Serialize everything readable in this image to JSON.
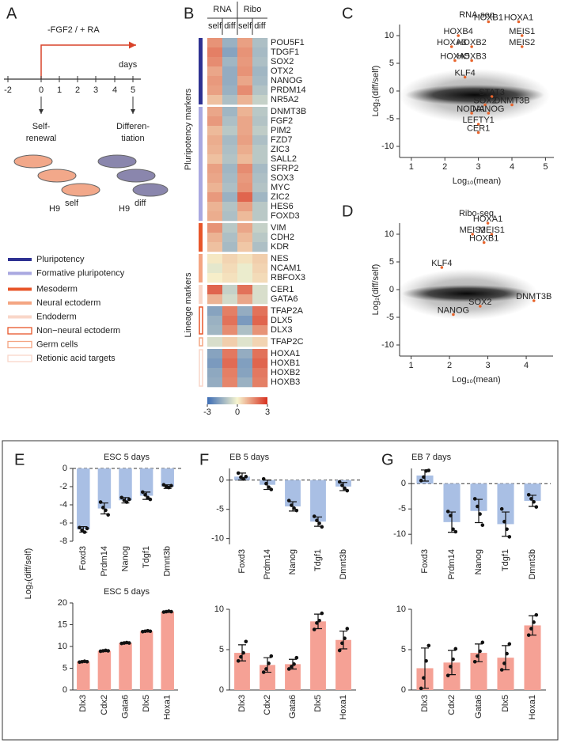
{
  "panel_labels": [
    "A",
    "B",
    "C",
    "D",
    "E",
    "F",
    "G"
  ],
  "schematic": {
    "treatment": "-FGF2 / + RA",
    "axis_unit": "days",
    "timeline": [
      "-2",
      "0",
      "1",
      "2",
      "3",
      "4",
      "5"
    ],
    "left_state": [
      "Self-",
      "renewal"
    ],
    "right_state": [
      "Differen-",
      "tiation"
    ],
    "cell_line": "H9",
    "left_tag": "self",
    "right_tag": "diff"
  },
  "chart_data": [
    {
      "type": "heatmap",
      "column_groups": [
        "RNA",
        "Ribo"
      ],
      "columns": [
        "self",
        "diff",
        "self",
        "diff"
      ],
      "clim": [
        -3,
        3
      ],
      "cticks": [
        -3,
        0,
        3
      ],
      "colormap": [
        "#3d6db5",
        "#f7f5cf",
        "#d7301f"
      ],
      "sections": [
        {
          "label": "Pluripotency markers",
          "color": "#3b3b9a",
          "groups": [
            {
              "name": "Pluripotency",
              "color": "#2e3192",
              "style": "solid",
              "rows": [
                "POU5F1",
                "TDGF1",
                "SOX2",
                "OTX2",
                "NANOG",
                "PRDM14",
                "NR5A2"
              ],
              "values": [
                [
                  1.5,
                  -1.5,
                  1.3,
                  -1.2
                ],
                [
                  1.8,
                  -1.8,
                  1.5,
                  -1.3
                ],
                [
                  1.6,
                  -1.4,
                  1.4,
                  -1.2
                ],
                [
                  1.2,
                  -1.6,
                  1.5,
                  -1.4
                ],
                [
                  1.4,
                  -1.6,
                  1.2,
                  -1.3
                ],
                [
                  1.3,
                  -1.5,
                  1.6,
                  -1.1
                ],
                [
                  0.8,
                  -1.2,
                  1.0,
                  -0.8
                ]
              ]
            },
            {
              "name": "Formative pluripotency",
              "color": "#a9a8e0",
              "style": "solid",
              "rows": [
                "DNMT3B",
                "FGF2",
                "PIM2",
                "FZD7",
                "ZIC3",
                "SALL2",
                "SFRP2",
                "SOX3",
                "MYC",
                "ZIC2",
                "HES6",
                "FOXD3"
              ],
              "values": [
                [
                  1.2,
                  -1.4,
                  1.0,
                  -1.0
                ],
                [
                  1.4,
                  -1.2,
                  1.2,
                  -1.1
                ],
                [
                  0.9,
                  -1.0,
                  1.2,
                  -0.9
                ],
                [
                  1.1,
                  -1.3,
                  1.3,
                  -1.2
                ],
                [
                  1.0,
                  -1.2,
                  1.1,
                  -1.0
                ],
                [
                  0.8,
                  -1.1,
                  0.9,
                  -1.0
                ],
                [
                  1.3,
                  -1.4,
                  1.6,
                  -1.3
                ],
                [
                  1.2,
                  -1.3,
                  1.4,
                  -1.2
                ],
                [
                  1.0,
                  -1.2,
                  1.5,
                  -1.1
                ],
                [
                  1.4,
                  -1.5,
                  2.2,
                  -1.4
                ],
                [
                  1.0,
                  -1.1,
                  1.3,
                  -1.0
                ],
                [
                  1.1,
                  -1.2,
                  0.9,
                  -1.0
                ]
              ]
            }
          ]
        },
        {
          "label": "Lineage markers",
          "color": "#e8562a",
          "groups": [
            {
              "name": "Mesoderm",
              "color": "#e8562a",
              "style": "solid",
              "rows": [
                "VIM",
                "CDH2",
                "KDR"
              ],
              "values": [
                [
                  1.5,
                  -1.0,
                  1.2,
                  -0.8
                ],
                [
                  1.0,
                  -1.2,
                  0.9,
                  -1.0
                ],
                [
                  0.8,
                  -1.3,
                  0.7,
                  -1.2
                ]
              ]
            },
            {
              "name": "Neural ectoderm",
              "color": "#f4a582",
              "style": "solid",
              "rows": [
                "NES",
                "NCAM1",
                "RBFOX3"
              ],
              "values": [
                [
                  0.2,
                  0.5,
                  0.3,
                  0.6
                ],
                [
                  -0.3,
                  0.4,
                  -0.2,
                  0.5
                ],
                [
                  0.1,
                  0.3,
                  -0.2,
                  0.4
                ]
              ]
            },
            {
              "name": "Endoderm",
              "color": "#f9d6c8",
              "style": "solid",
              "rows": [
                "CER1",
                "GATA6"
              ],
              "values": [
                [
                  2.2,
                  -0.8,
                  2.0,
                  -0.5
                ],
                [
                  1.0,
                  -0.6,
                  1.2,
                  -0.5
                ]
              ]
            },
            {
              "name": "Non−neural ectoderm",
              "color": "#e8562a",
              "style": "outline",
              "rows": [
                "TFAP2A",
                "DLX5",
                "DLX3"
              ],
              "values": [
                [
                  -1.8,
                  1.8,
                  -1.6,
                  2.0
                ],
                [
                  -1.5,
                  2.0,
                  -2.0,
                  2.2
                ],
                [
                  -1.4,
                  1.6,
                  -1.2,
                  1.5
                ]
              ]
            },
            {
              "name": "Germ cells",
              "color": "#f4a582",
              "style": "outline",
              "rows": [
                "TFAP2C"
              ],
              "values": [
                [
                  -0.5,
                  0.6,
                  -0.4,
                  0.5
                ]
              ]
            },
            {
              "name": "Retionic acid targets",
              "color": "#f9d6c8",
              "style": "outline",
              "rows": [
                "HOXA1",
                "HOXB1",
                "HOXB2",
                "HOXB3"
              ],
              "values": [
                [
                  -1.8,
                  1.9,
                  -1.6,
                  2.0
                ],
                [
                  -2.0,
                  2.1,
                  -1.9,
                  2.2
                ],
                [
                  -1.7,
                  1.8,
                  -1.8,
                  1.9
                ],
                [
                  -1.6,
                  1.7,
                  -1.5,
                  1.8
                ]
              ]
            }
          ]
        }
      ]
    },
    {
      "type": "scatter",
      "title": "RNA-seq",
      "xlabel": "Log₁₀(mean)",
      "ylabel": "Log₂(diff/self)",
      "color": "#e8642c",
      "labels": [
        "HOXB1",
        "HOXA1",
        "MEIS1",
        "MEIS2",
        "HOXB4",
        "HOXA3",
        "HOXB2",
        "HOXA5",
        "HOXB3",
        "KLF4",
        "STAT3",
        "SOX2",
        "DNMT3B",
        "NODAL",
        "NANOG",
        "LEFTY1",
        "CER1"
      ],
      "x": [
        3.3,
        4.2,
        4.3,
        4.3,
        2.4,
        2.2,
        2.8,
        2.3,
        2.8,
        2.6,
        3.4,
        3.2,
        4.0,
        2.8,
        3.3,
        3.0,
        3.0
      ],
      "y": [
        12.5,
        12.5,
        10.0,
        8.0,
        10.0,
        8.0,
        8.0,
        5.5,
        5.5,
        2.5,
        -1.0,
        -2.5,
        -2.5,
        -4.0,
        -4.0,
        -6.0,
        -7.5
      ],
      "xlim": [
        0.65,
        5.25
      ],
      "ylim": [
        -12,
        12
      ],
      "xticks": [
        1,
        2,
        3,
        4,
        5
      ],
      "yticks": [
        -10,
        -5,
        0,
        5,
        10
      ]
    },
    {
      "type": "scatter",
      "title": "Ribo-seq",
      "xlabel": "Log₁₀(mean)",
      "ylabel": "Log₂(diff/self)",
      "color": "#e8642c",
      "labels": [
        "HOXA1",
        "MEIS2",
        "MEIS1",
        "HOXB1",
        "KLF4",
        "SOX2",
        "DNMT3B",
        "NANOG"
      ],
      "x": [
        3.0,
        2.6,
        3.1,
        2.9,
        1.8,
        2.8,
        4.2,
        2.1
      ],
      "y": [
        12.0,
        10.0,
        10.0,
        8.5,
        4.0,
        -3.0,
        -2.0,
        -4.5
      ],
      "xlim": [
        0.7,
        4.7
      ],
      "ylim": [
        -12,
        12
      ],
      "xticks": [
        1,
        2,
        3,
        4
      ],
      "yticks": [
        -10,
        -5,
        0,
        5,
        10
      ]
    },
    {
      "type": "bar",
      "title": "ESC 5 days",
      "ylabel": "Log₂(diff/self)",
      "color": "#a9bfe4",
      "zero_line": true,
      "categories": [
        "Foxd3",
        "Prdm14",
        "Nanog",
        "Tdgf1",
        "Dmnt3b"
      ],
      "values": [
        -6.7,
        -4.4,
        -3.5,
        -3.0,
        -2.0
      ],
      "errors": [
        0.3,
        0.6,
        0.3,
        0.4,
        0.2
      ],
      "points": [
        [
          -6.5,
          -6.8,
          -7.0,
          -6.6
        ],
        [
          -3.7,
          -4.3,
          -4.6,
          -5.1
        ],
        [
          -3.2,
          -3.5,
          -3.7,
          -3.4
        ],
        [
          -2.6,
          -2.9,
          -3.2,
          -3.4
        ],
        [
          -1.8,
          -2.0,
          -2.1,
          -1.9
        ]
      ],
      "ylim": [
        -8,
        0
      ],
      "yticks": [
        -8,
        -6,
        -4,
        -2,
        0
      ]
    },
    {
      "type": "bar",
      "title": "ESC 5 days",
      "color": "#f5a195",
      "zero_line": false,
      "categories": [
        "Dlx3",
        "Cdx2",
        "Gata6",
        "Dlx5",
        "Hoxa1"
      ],
      "values": [
        6.5,
        9.0,
        10.8,
        13.5,
        18.0
      ],
      "errors": [
        0.1,
        0.1,
        0.1,
        0.1,
        0.1
      ],
      "points": [
        [
          6.4,
          6.5,
          6.6,
          6.5
        ],
        [
          8.9,
          9.0,
          9.1,
          9.0
        ],
        [
          10.7,
          10.8,
          10.9,
          10.8
        ],
        [
          13.4,
          13.5,
          13.6,
          13.5
        ],
        [
          17.9,
          18.0,
          18.1,
          18.0
        ]
      ],
      "ylim": [
        0,
        20
      ],
      "yticks": [
        0,
        5,
        10,
        15,
        20
      ]
    },
    {
      "type": "bar",
      "title": "EB 5 days",
      "color": "#a9bfe4",
      "zero_line": true,
      "categories": [
        "Foxd3",
        "Prdm14",
        "Nanog",
        "Tdgf1",
        "Dmnt3b"
      ],
      "values": [
        0.6,
        -0.8,
        -4.5,
        -7.1,
        -1.1
      ],
      "errors": [
        0.6,
        0.8,
        0.8,
        0.8,
        0.7
      ],
      "points": [
        [
          1.2,
          0.5,
          0.2,
          0.6
        ],
        [
          0.2,
          -0.6,
          -1.2,
          -1.6
        ],
        [
          -3.5,
          -4.3,
          -4.8,
          -5.2
        ],
        [
          -6.2,
          -6.9,
          -7.4,
          -8.0
        ],
        [
          -0.3,
          -0.9,
          -1.4,
          -1.8
        ]
      ],
      "ylim": [
        -11,
        2
      ],
      "yticks": [
        -10,
        -5,
        0
      ]
    },
    {
      "type": "bar",
      "title": "",
      "color": "#f5a195",
      "zero_line": false,
      "categories": [
        "Dlx3",
        "Cdx2",
        "Gata6",
        "Dlx5",
        "Hoxa1"
      ],
      "values": [
        4.6,
        3.1,
        3.2,
        8.5,
        6.2
      ],
      "errors": [
        1.0,
        0.9,
        0.6,
        0.9,
        1.1
      ],
      "points": [
        [
          3.6,
          4.1,
          4.6,
          6.0
        ],
        [
          2.2,
          2.6,
          3.3,
          4.2
        ],
        [
          2.6,
          2.9,
          3.2,
          4.0
        ],
        [
          7.5,
          8.3,
          8.6,
          9.5
        ],
        [
          4.9,
          5.8,
          6.4,
          7.6
        ]
      ],
      "ylim": [
        0,
        10
      ],
      "yticks": [
        0,
        5,
        10
      ]
    },
    {
      "type": "bar",
      "title": "EB 7 days",
      "color": "#a9bfe4",
      "zero_line": true,
      "categories": [
        "Foxd3",
        "Prdm14",
        "Nanog",
        "Tdgf1",
        "Dmnt3b"
      ],
      "values": [
        1.6,
        -7.6,
        -5.4,
        -8.0,
        -3.4
      ],
      "errors": [
        1.1,
        2.0,
        2.3,
        2.4,
        1.1
      ],
      "points": [
        [
          0.6,
          1.3,
          2.5,
          2.6
        ],
        [
          -5.5,
          -6.3,
          -9.0,
          -9.5
        ],
        [
          -3.0,
          -4.5,
          -6.0,
          -8.2
        ],
        [
          -5.0,
          -7.5,
          -9.0,
          -10.5
        ],
        [
          -2.2,
          -3.0,
          -3.6,
          -4.6
        ]
      ],
      "ylim": [
        -12,
        3
      ],
      "yticks": [
        -10,
        -5,
        0
      ]
    },
    {
      "type": "bar",
      "title": "",
      "color": "#f5a195",
      "zero_line": false,
      "categories": [
        "Dlx3",
        "Cdx2",
        "Gata6",
        "Dlx5",
        "Hoxa1"
      ],
      "values": [
        2.7,
        3.4,
        4.6,
        4.0,
        8.0
      ],
      "errors": [
        2.5,
        1.5,
        1.1,
        1.5,
        1.2
      ],
      "points": [
        [
          0.2,
          1.5,
          3.6,
          5.5
        ],
        [
          1.8,
          2.9,
          3.8,
          5.1
        ],
        [
          3.5,
          4.2,
          4.8,
          5.9
        ],
        [
          2.5,
          3.3,
          4.5,
          5.7
        ],
        [
          6.8,
          7.6,
          8.4,
          9.3
        ]
      ],
      "ylim": [
        0,
        10
      ],
      "yticks": [
        0,
        5,
        10
      ]
    }
  ]
}
